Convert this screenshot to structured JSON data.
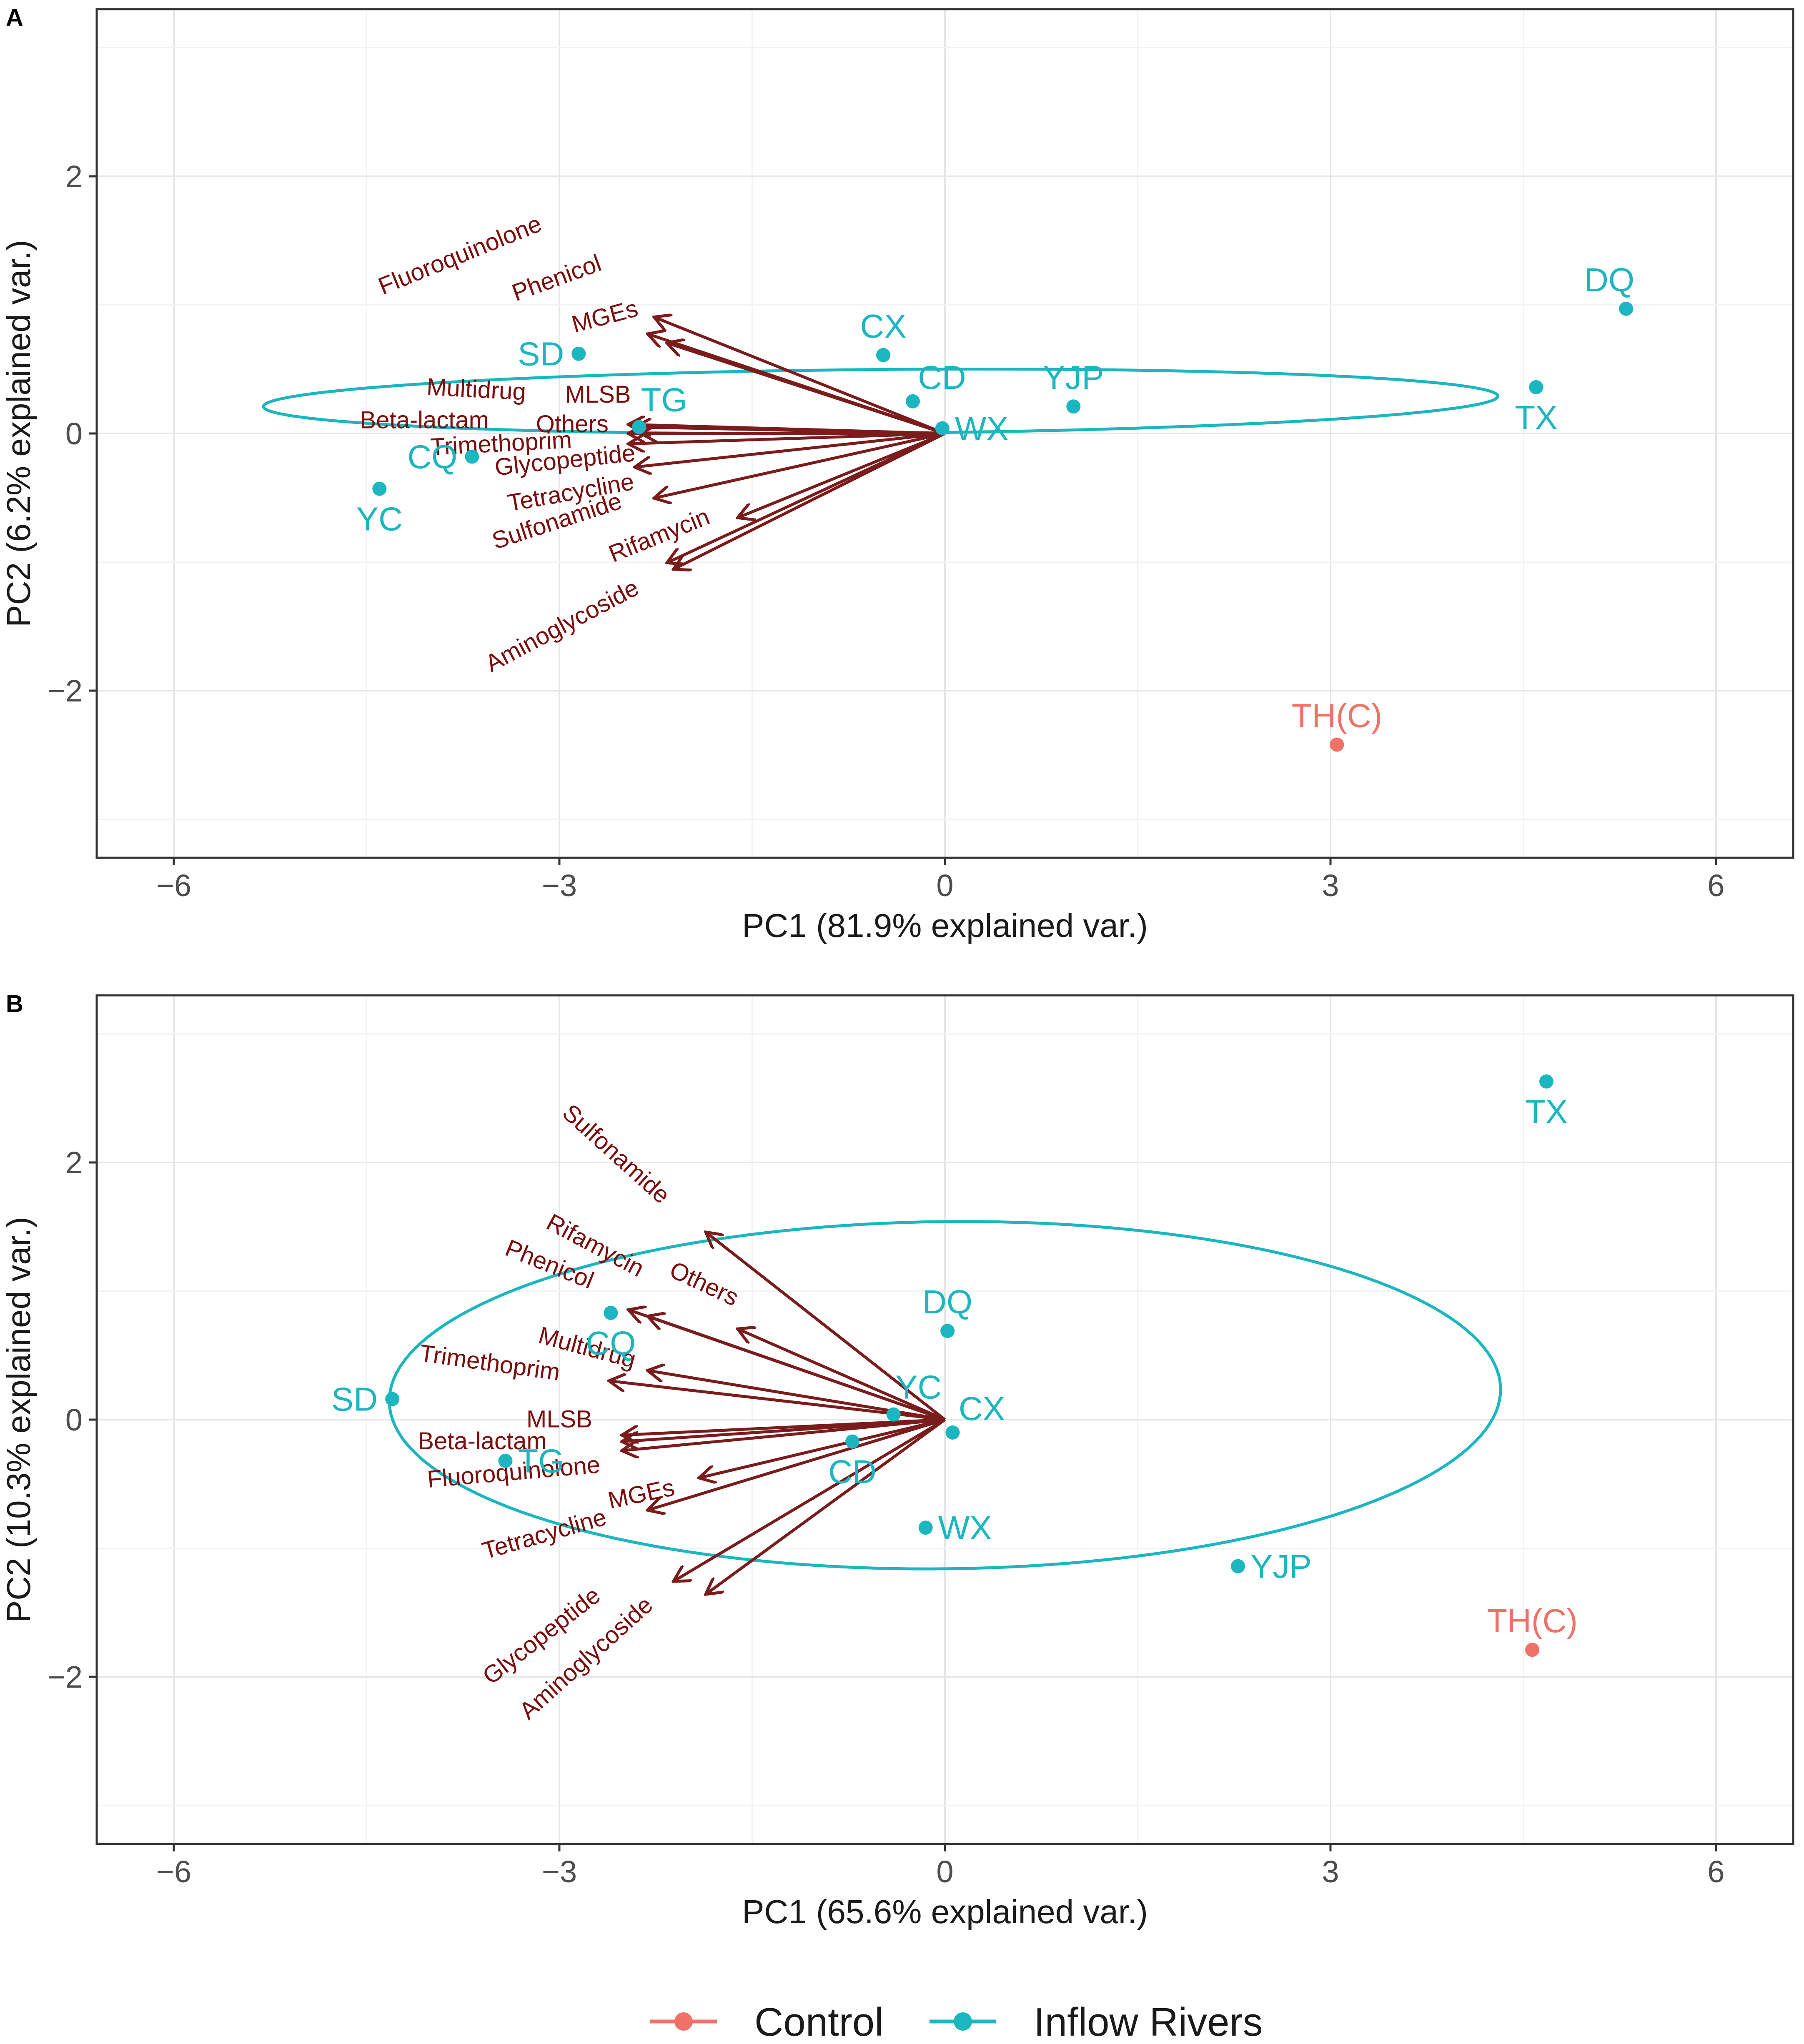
{
  "colors": {
    "control": "#f07167",
    "inflow": "#1bb6bf",
    "arrow": "#7b1c1c",
    "loading_text": "#7b0d0d",
    "grid_major": "#e6e6e6",
    "grid_minor": "#f3f3f3",
    "panel_border": "#333333"
  },
  "legend": {
    "items": [
      {
        "label": "Control",
        "group": "control"
      },
      {
        "label": "Inflow Rivers",
        "group": "inflow"
      }
    ]
  },
  "chart_data": [
    {
      "type": "scatter",
      "panel_label": "A",
      "title": "",
      "xlabel": "PC1 (81.9% explained var.)",
      "ylabel": "PC2 (6.2% explained var.)",
      "xlim": [
        -6.6,
        6.6
      ],
      "ylim": [
        -3.3,
        3.3
      ],
      "xticks": [
        -6,
        -3,
        0,
        3,
        6
      ],
      "yticks": [
        -2,
        0,
        2
      ],
      "xtick_labels": [
        "−6",
        "−3",
        "0",
        "3",
        "6"
      ],
      "ytick_labels": [
        "−2",
        "0",
        "2"
      ],
      "points": [
        {
          "label": "SD",
          "x": -2.85,
          "y": 0.62,
          "group": "inflow",
          "label_pos": "left"
        },
        {
          "label": "CX",
          "x": -0.48,
          "y": 0.61,
          "group": "inflow",
          "label_pos": "above"
        },
        {
          "label": "CD",
          "x": -0.25,
          "y": 0.25,
          "group": "inflow",
          "label_pos": "right-up"
        },
        {
          "label": "YJP",
          "x": 1.0,
          "y": 0.21,
          "group": "inflow",
          "label_pos": "above"
        },
        {
          "label": "WX",
          "x": -0.02,
          "y": 0.04,
          "group": "inflow",
          "label_pos": "right"
        },
        {
          "label": "TG",
          "x": -2.38,
          "y": 0.05,
          "group": "inflow",
          "label_pos": "above-right"
        },
        {
          "label": "CQ",
          "x": -3.68,
          "y": -0.18,
          "group": "inflow",
          "label_pos": "left"
        },
        {
          "label": "YC",
          "x": -4.4,
          "y": -0.43,
          "group": "inflow",
          "label_pos": "below"
        },
        {
          "label": "DQ",
          "x": 5.3,
          "y": 0.97,
          "group": "inflow",
          "label_pos": "above-left"
        },
        {
          "label": "TX",
          "x": 4.6,
          "y": 0.36,
          "group": "inflow",
          "label_pos": "below"
        },
        {
          "label": "TH(C)",
          "x": 3.05,
          "y": -2.42,
          "group": "control",
          "label_pos": "above"
        }
      ],
      "ellipse": {
        "group": "inflow",
        "cx": -0.5,
        "cy": 0.25,
        "rx": 4.85,
        "ry": 0.25,
        "angle_deg": 8.0
      },
      "loadings": [
        {
          "label": "Phenicol",
          "x": -2.25,
          "y": 0.9,
          "label_x": -3.0,
          "label_y": 1.15,
          "rotation": -20
        },
        {
          "label": "Fluoroquinolone",
          "x": -2.15,
          "y": 0.7,
          "label_x": -3.75,
          "label_y": 1.33,
          "rotation": -22
        },
        {
          "label": "MGEs",
          "x": -2.3,
          "y": 0.77,
          "label_x": -2.63,
          "label_y": 0.85,
          "rotation": -15
        },
        {
          "label": "Multidrug",
          "x": -2.45,
          "y": 0.07,
          "label_x": -3.65,
          "label_y": 0.28,
          "rotation": 3
        },
        {
          "label": "MLSB",
          "x": -2.4,
          "y": 0.05,
          "label_x": -2.7,
          "label_y": 0.24,
          "rotation": 0
        },
        {
          "label": "Beta-lactam",
          "x": -2.45,
          "y": 0.0,
          "label_x": -4.05,
          "label_y": 0.04,
          "rotation": 0
        },
        {
          "label": "Others",
          "x": -2.35,
          "y": 0.0,
          "label_x": -2.9,
          "label_y": 0.01,
          "rotation": 0
        },
        {
          "label": "Trimethoprim",
          "x": -2.45,
          "y": -0.08,
          "label_x": -3.45,
          "label_y": -0.14,
          "rotation": -3
        },
        {
          "label": "Glycopeptide",
          "x": -2.4,
          "y": -0.26,
          "label_x": -2.95,
          "label_y": -0.27,
          "rotation": -6
        },
        {
          "label": "Tetracycline",
          "x": -2.25,
          "y": -0.5,
          "label_x": -2.9,
          "label_y": -0.52,
          "rotation": -10
        },
        {
          "label": "Sulfonamide",
          "x": -1.6,
          "y": -0.65,
          "label_x": -3.0,
          "label_y": -0.74,
          "rotation": -18
        },
        {
          "label": "Rifamycin",
          "x": -2.1,
          "y": -1.05,
          "label_x": -2.2,
          "label_y": -0.85,
          "rotation": -22
        },
        {
          "label": "Aminoglycoside",
          "x": -2.15,
          "y": -1.0,
          "label_x": -2.95,
          "label_y": -1.55,
          "rotation": -28
        }
      ]
    },
    {
      "type": "scatter",
      "panel_label": "B",
      "title": "",
      "xlabel": "PC1 (65.6% explained var.)",
      "ylabel": "PC2 (10.3% explained var.)",
      "xlim": [
        -6.6,
        6.6
      ],
      "ylim": [
        -3.3,
        3.3
      ],
      "xticks": [
        -6,
        -3,
        0,
        3,
        6
      ],
      "yticks": [
        -2,
        0,
        2
      ],
      "xtick_labels": [
        "−6",
        "−3",
        "0",
        "3",
        "6"
      ],
      "ytick_labels": [
        "−2",
        "0",
        "2"
      ],
      "points": [
        {
          "label": "TX",
          "x": 4.68,
          "y": 2.63,
          "group": "inflow",
          "label_pos": "below"
        },
        {
          "label": "DQ",
          "x": 0.02,
          "y": 0.69,
          "group": "inflow",
          "label_pos": "above"
        },
        {
          "label": "CQ",
          "x": -2.6,
          "y": 0.83,
          "group": "inflow",
          "label_pos": "below"
        },
        {
          "label": "YC",
          "x": -0.4,
          "y": 0.04,
          "group": "inflow",
          "label_pos": "above-right"
        },
        {
          "label": "CX",
          "x": 0.06,
          "y": -0.1,
          "group": "inflow",
          "label_pos": "right-up"
        },
        {
          "label": "SD",
          "x": -4.3,
          "y": 0.16,
          "group": "inflow",
          "label_pos": "left"
        },
        {
          "label": "TG",
          "x": -3.42,
          "y": -0.32,
          "group": "inflow",
          "label_pos": "right"
        },
        {
          "label": "CD",
          "x": -0.72,
          "y": -0.17,
          "group": "inflow",
          "label_pos": "below"
        },
        {
          "label": "WX",
          "x": -0.15,
          "y": -0.84,
          "group": "inflow",
          "label_pos": "right"
        },
        {
          "label": "YJP",
          "x": 2.28,
          "y": -1.14,
          "group": "inflow",
          "label_pos": "right"
        },
        {
          "label": "TH(C)",
          "x": 4.57,
          "y": -1.79,
          "group": "control",
          "label_pos": "above"
        }
      ],
      "ellipse": {
        "group": "inflow",
        "cx": 0.0,
        "cy": 0.19,
        "rx": 4.42,
        "ry": 1.38,
        "angle_deg": 12.0
      },
      "loadings": [
        {
          "label": "Sulfonamide",
          "x": -1.85,
          "y": 1.45,
          "label_x": -2.6,
          "label_y": 2.02,
          "rotation": 42
        },
        {
          "label": "Rifamycin",
          "x": -2.45,
          "y": 0.85,
          "label_x": -2.75,
          "label_y": 1.3,
          "rotation": 28
        },
        {
          "label": "Phenicol",
          "x": -2.3,
          "y": 0.8,
          "label_x": -3.1,
          "label_y": 1.15,
          "rotation": 22
        },
        {
          "label": "Others",
          "x": -1.6,
          "y": 0.7,
          "label_x": -1.9,
          "label_y": 1.0,
          "rotation": 25
        },
        {
          "label": "Multidrug",
          "x": -2.3,
          "y": 0.38,
          "label_x": -2.8,
          "label_y": 0.5,
          "rotation": 15
        },
        {
          "label": "Trimethoprim",
          "x": -2.6,
          "y": 0.3,
          "label_x": -3.55,
          "label_y": 0.38,
          "rotation": 8
        },
        {
          "label": "MLSB",
          "x": -2.5,
          "y": -0.12,
          "label_x": -3.0,
          "label_y": -0.06,
          "rotation": 0
        },
        {
          "label": "Beta-lactam",
          "x": -2.5,
          "y": -0.17,
          "label_x": -3.6,
          "label_y": -0.23,
          "rotation": 0
        },
        {
          "label": "Fluoroquinolone",
          "x": -1.9,
          "y": -0.45,
          "label_x": -3.35,
          "label_y": -0.47,
          "rotation": -5
        },
        {
          "label": "MGEs",
          "x": -2.3,
          "y": -0.7,
          "label_x": -2.35,
          "label_y": -0.64,
          "rotation": -12
        },
        {
          "label": "Tetracycline",
          "x": -2.5,
          "y": -0.24,
          "label_x": -3.1,
          "label_y": -0.95,
          "rotation": -16
        },
        {
          "label": "Glycopeptide",
          "x": -2.1,
          "y": -1.25,
          "label_x": -3.1,
          "label_y": -1.73,
          "rotation": -38
        },
        {
          "label": "Aminoglycoside",
          "x": -1.85,
          "y": -1.35,
          "label_x": -2.75,
          "label_y": -1.9,
          "rotation": -42
        }
      ]
    }
  ]
}
